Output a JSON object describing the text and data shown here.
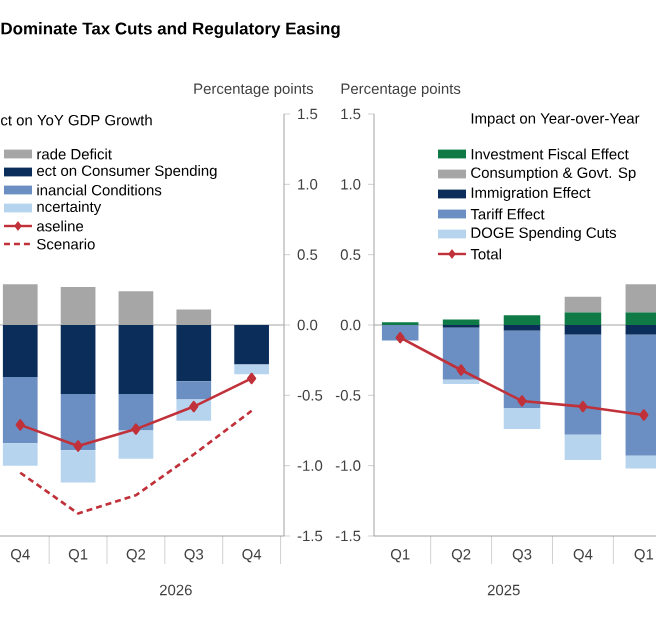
{
  "chart_data": [
    {
      "type": "bar",
      "stacked": true,
      "title": "Dominate Tax Cuts and Regulatory Easing",
      "subtitle": "ct on YoY GDP Growth",
      "ylabel": "Percentage points",
      "categories": [
        "Q4",
        "Q1",
        "Q2",
        "Q3",
        "Q4"
      ],
      "series": [
        {
          "name": "rade Deficit",
          "color": "#a6a6a6",
          "values": [
            0.29,
            0.27,
            0.24,
            0.11,
            null
          ]
        },
        {
          "name": "ect on Consumer Spending",
          "color": "#0b2d5a",
          "values": [
            -0.37,
            -0.49,
            -0.49,
            -0.4,
            -0.28
          ]
        },
        {
          "name": "inancial Conditions",
          "color": "#6b8fc2",
          "values": [
            -0.47,
            -0.4,
            -0.26,
            -0.13,
            null
          ]
        },
        {
          "name": "ncertainty",
          "color": "#b7d4ef",
          "values": [
            -0.16,
            -0.23,
            -0.2,
            -0.15,
            -0.07
          ]
        },
        {
          "name": "aseline",
          "type": "line",
          "color": "#c0313a",
          "marker": "diamond",
          "line_style": "solid",
          "values": [
            -0.71,
            -0.86,
            -0.74,
            -0.58,
            -0.38
          ]
        },
        {
          "name": "Scenario",
          "type": "line",
          "color": "#c0313a",
          "line_style": "dashed",
          "values": [
            -1.05,
            -1.34,
            -1.21,
            -0.92,
            -0.61
          ]
        }
      ],
      "ylim": [
        -1.5,
        1.5
      ],
      "yticks": [
        -1.5,
        {
          "value": -1,
          "label": "-1.0"
        },
        -0.5,
        {
          "value": 0,
          "label": "0.0"
        },
        0.5,
        {
          "value": 1,
          "label": "1.0"
        },
        1.5
      ],
      "ref_lines": [
        {
          "axis": "y",
          "value": 0,
          "color": "#a6a6a6"
        }
      ],
      "legend": "top left",
      "annotations": [
        "2026"
      ]
    },
    {
      "type": "bar",
      "stacked": true,
      "subtitle": "Impact on Year-over-Year",
      "ylabel": "Percentage points",
      "categories": [
        "Q1",
        "Q2",
        "Q3",
        "Q4",
        "Q1"
      ],
      "series": [
        {
          "name": "Investment Fiscal Effect",
          "color": "#0f7a46",
          "values": [
            0.02,
            0.04,
            0.07,
            0.09,
            0.09
          ]
        },
        {
          "name": "Consumption & Govt. Sp",
          "color": "#a6a6a6",
          "values": [
            null,
            null,
            null,
            0.11,
            0.2
          ]
        },
        {
          "name": "Immigration Effect",
          "color": "#0b2d5a",
          "values": [
            null,
            -0.02,
            -0.04,
            -0.07,
            -0.07
          ]
        },
        {
          "name": "Tariff Effect",
          "color": "#6b8fc2",
          "values": [
            -0.11,
            -0.37,
            -0.55,
            -0.71,
            -0.86
          ]
        },
        {
          "name": "DOGE Spending Cuts",
          "color": "#b7d4ef",
          "values": [
            null,
            -0.03,
            -0.15,
            -0.18,
            -0.09
          ]
        },
        {
          "name": "Total",
          "type": "line",
          "color": "#c0313a",
          "marker": "diamond",
          "line_style": "solid",
          "values": [
            -0.09,
            -0.32,
            -0.54,
            -0.58,
            -0.64
          ]
        }
      ],
      "ylim": [
        -1.5,
        1.5
      ],
      "yticks": [
        -1.5,
        {
          "value": -1,
          "label": "-1.0"
        },
        -0.5,
        {
          "value": 0,
          "label": "0.0"
        },
        0.5,
        {
          "value": 1,
          "label": "1.0"
        },
        1.5
      ],
      "ref_lines": [
        {
          "axis": "y",
          "value": 0,
          "color": "#a6a6a6"
        }
      ],
      "legend": "top right",
      "annotations": [
        "2025"
      ]
    }
  ]
}
